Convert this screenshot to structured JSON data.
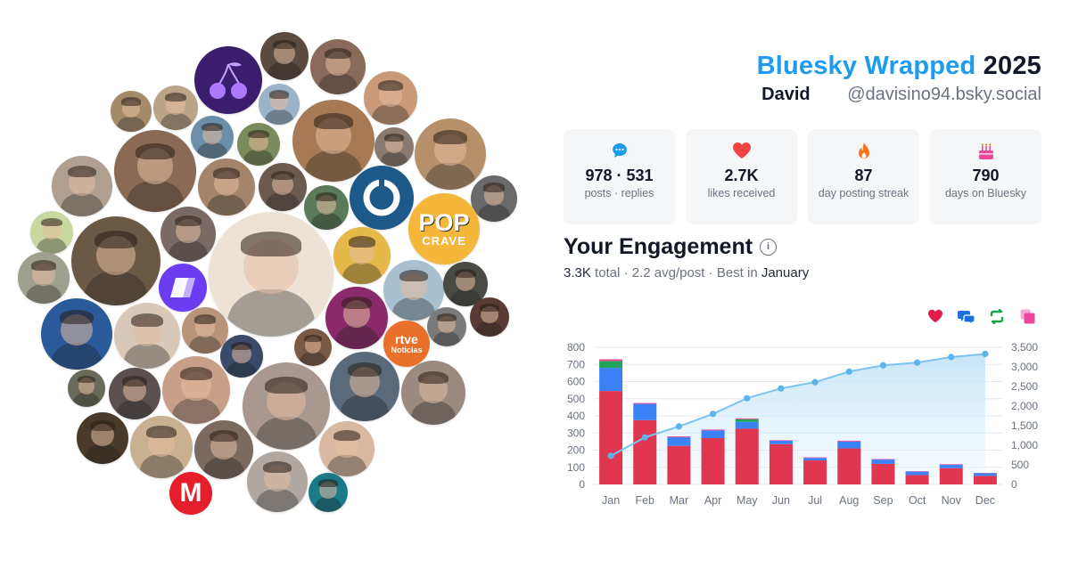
{
  "header": {
    "title_brand": "Bluesky Wrapped",
    "title_year": "2025",
    "display_name": "David",
    "handle": "@davisino94.bsky.social"
  },
  "stats": [
    {
      "icon": "speech-bubble-icon",
      "value": "978 · 531",
      "label": "posts · replies",
      "color": "#1d9bf0"
    },
    {
      "icon": "heart-icon",
      "value": "2.7K",
      "label": "likes received",
      "color": "#ef4444"
    },
    {
      "icon": "flame-icon",
      "value": "87",
      "label": "day posting streak",
      "color": "#f97316"
    },
    {
      "icon": "cake-icon",
      "value": "790",
      "label": "days on Bluesky",
      "color": "#ec4899"
    }
  ],
  "engagement": {
    "title": "Your Engagement",
    "total": "3.3K",
    "total_word": "total",
    "avg": "2.2 avg/post",
    "best_prefix": "Best in",
    "best_month": "January",
    "sep": "·",
    "legend": [
      {
        "icon": "heart-icon",
        "color": "#e11d48"
      },
      {
        "icon": "reply-icon",
        "color": "#1d6fe0"
      },
      {
        "icon": "repost-icon",
        "color": "#16a34a"
      },
      {
        "icon": "quote-icon",
        "color": "#ec4899"
      }
    ]
  },
  "logos": {
    "pop_top": "POP",
    "pop_bottom": "CRAVE",
    "rtve_top": "rtve",
    "rtve_bottom": "Noticias",
    "m": "M"
  },
  "chart_data": {
    "type": "bar",
    "categories": [
      "Jan",
      "Feb",
      "Mar",
      "Apr",
      "May",
      "Jun",
      "Jul",
      "Aug",
      "Sep",
      "Oct",
      "Nov",
      "Dec"
    ],
    "series": [
      {
        "kind": "likes",
        "values": [
          545,
          375,
          225,
          270,
          325,
          235,
          140,
          210,
          120,
          55,
          95,
          50
        ],
        "color": "#e0364f"
      },
      {
        "kind": "replies",
        "values": [
          135,
          95,
          50,
          45,
          40,
          20,
          15,
          40,
          25,
          20,
          20,
          15
        ],
        "color": "#3b82f6"
      },
      {
        "kind": "reposts",
        "values": [
          40,
          0,
          0,
          0,
          15,
          0,
          0,
          0,
          0,
          0,
          0,
          0
        ],
        "color": "#22a55a"
      },
      {
        "kind": "quotes",
        "values": [
          10,
          5,
          5,
          5,
          5,
          3,
          3,
          5,
          3,
          2,
          3,
          2
        ],
        "color": "#ec4899"
      },
      {
        "kind": "cumulative",
        "axis": "right",
        "values": [
          730,
          1200,
          1480,
          1800,
          2200,
          2450,
          2610,
          2880,
          3040,
          3110,
          3250,
          3330
        ],
        "color": "#7cc4ef"
      }
    ],
    "ylim": [
      0,
      800
    ],
    "yticks": [
      "0",
      "100",
      "200",
      "300",
      "400",
      "500",
      "600",
      "700",
      "800"
    ],
    "y2lim": [
      0,
      3500
    ],
    "y2ticks": [
      "0",
      "500",
      "1,000",
      "1,500",
      "2,000",
      "2,500",
      "3,000",
      "3,500"
    ],
    "grid": true
  }
}
